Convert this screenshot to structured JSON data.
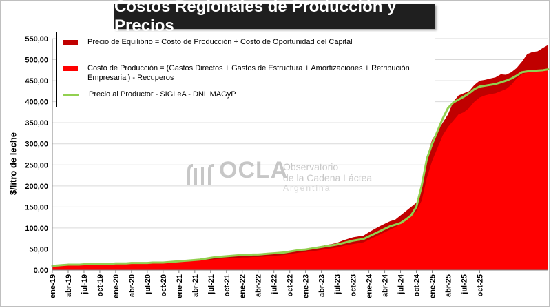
{
  "title": "Costos Regionales de Producción y Precios",
  "colors": {
    "equilibrio": "#c00000",
    "costo": "#ff0000",
    "precio": "#92d050"
  },
  "watermark": {
    "icon": "ocla-logo-icon",
    "brand": "OCLA",
    "line1": "Observatorio",
    "line2": "de la Cadena Láctea",
    "line3": "Argentina"
  },
  "legend": {
    "equilibrio": "Precio de Equilibrio = Costo de Producción + Costo de Oportunidad del Capital",
    "costo": "Costo de Producción = (Gastos Directos + Gastos de Estructura + Amortizaciones + Retribución Empresarial) - Recuperos",
    "precio": "Precio al Productor - SIGLeA - DNL MAGyP"
  },
  "chart_data": {
    "type": "area",
    "title": "Costos Regionales de Producción y Precios",
    "xlabel": "",
    "ylabel": "$/litro de leche",
    "ylim": [
      0,
      550
    ],
    "yticks": [
      "0,00",
      "50,00",
      "100,00",
      "150,00",
      "200,00",
      "250,00",
      "300,00",
      "350,00",
      "400,00",
      "450,00",
      "500,00",
      "550,00"
    ],
    "xtick_labels": [
      "ene-19",
      "abr-19",
      "jul-19",
      "oct-19",
      "ene-20",
      "abr-20",
      "jul-20",
      "oct-20",
      "ene-21",
      "abr-21",
      "jul-21",
      "oct-21",
      "ene-22",
      "abr-22",
      "jul-22",
      "oct-22",
      "ene-23",
      "abr-23",
      "jul-23",
      "oct-23",
      "ene-24",
      "abr-24",
      "jul-24",
      "oct-24",
      "ene-25",
      "abr-25",
      "jul-25",
      "oct-25"
    ],
    "grid": "horizontal",
    "legend_position": "top-left",
    "series": [
      {
        "name": "Precio de Equilibrio = Costo de Producción + Costo de Oportunidad del Capital",
        "values": [
          12,
          13,
          14,
          15,
          15,
          15,
          15,
          15,
          15,
          16,
          16,
          16,
          17,
          17,
          17,
          18,
          18,
          18,
          18,
          19,
          19,
          19,
          20,
          21,
          22,
          23,
          24,
          25,
          26,
          27,
          28,
          30,
          31,
          32,
          33,
          34,
          35,
          35,
          36,
          36,
          37,
          38,
          39,
          40,
          41,
          44,
          47,
          50,
          51,
          53,
          55,
          57,
          60,
          62,
          65,
          70,
          74,
          78,
          80,
          82,
          90,
          97,
          104,
          110,
          116,
          120,
          130,
          140,
          150,
          160,
          190,
          270,
          310,
          330,
          350,
          370,
          400,
          415,
          420,
          425,
          440,
          450,
          452,
          455,
          458,
          465,
          464,
          470,
          480,
          495,
          513,
          518,
          520,
          528,
          535
        ]
      },
      {
        "name": "Costo de Producción = (Gastos Directos + Gastos de Estructura + Amortizaciones + Retribución Empresarial) - Recuperos",
        "values": [
          9,
          10,
          11,
          12,
          12,
          12,
          13,
          13,
          13,
          14,
          14,
          14,
          15,
          15,
          15,
          16,
          16,
          16,
          16,
          17,
          17,
          17,
          18,
          19,
          20,
          20,
          21,
          22,
          23,
          24,
          25,
          26,
          27,
          28,
          28,
          29,
          30,
          30,
          31,
          31,
          32,
          33,
          34,
          35,
          36,
          38,
          40,
          42,
          43,
          45,
          46,
          48,
          50,
          52,
          54,
          57,
          60,
          62,
          64,
          66,
          72,
          78,
          84,
          90,
          96,
          102,
          110,
          118,
          128,
          140,
          165,
          220,
          260,
          290,
          320,
          340,
          355,
          370,
          375,
          385,
          400,
          410,
          415,
          418,
          420,
          425,
          430,
          440,
          455,
          465,
          470,
          472,
          474,
          476,
          478
        ]
      },
      {
        "name": "Precio al Productor - SIGLeA - DNL MAGyP",
        "values": [
          10,
          11,
          12,
          13,
          13,
          13,
          14,
          14,
          14,
          15,
          15,
          15,
          16,
          16,
          16,
          17,
          17,
          17,
          17,
          18,
          18,
          18,
          19,
          20,
          21,
          22,
          23,
          24,
          25,
          27,
          29,
          31,
          32,
          33,
          34,
          35,
          36,
          36,
          37,
          37,
          38,
          39,
          40,
          41,
          42,
          44,
          46,
          48,
          49,
          51,
          53,
          55,
          57,
          59,
          61,
          64,
          67,
          70,
          72,
          74,
          80,
          86,
          92,
          98,
          104,
          108,
          112,
          120,
          130,
          150,
          200,
          265,
          300,
          330,
          360,
          385,
          398,
          405,
          412,
          420,
          430,
          436,
          438,
          440,
          442,
          446,
          450,
          455,
          462,
          470,
          472,
          473,
          474,
          475,
          477
        ]
      }
    ]
  }
}
